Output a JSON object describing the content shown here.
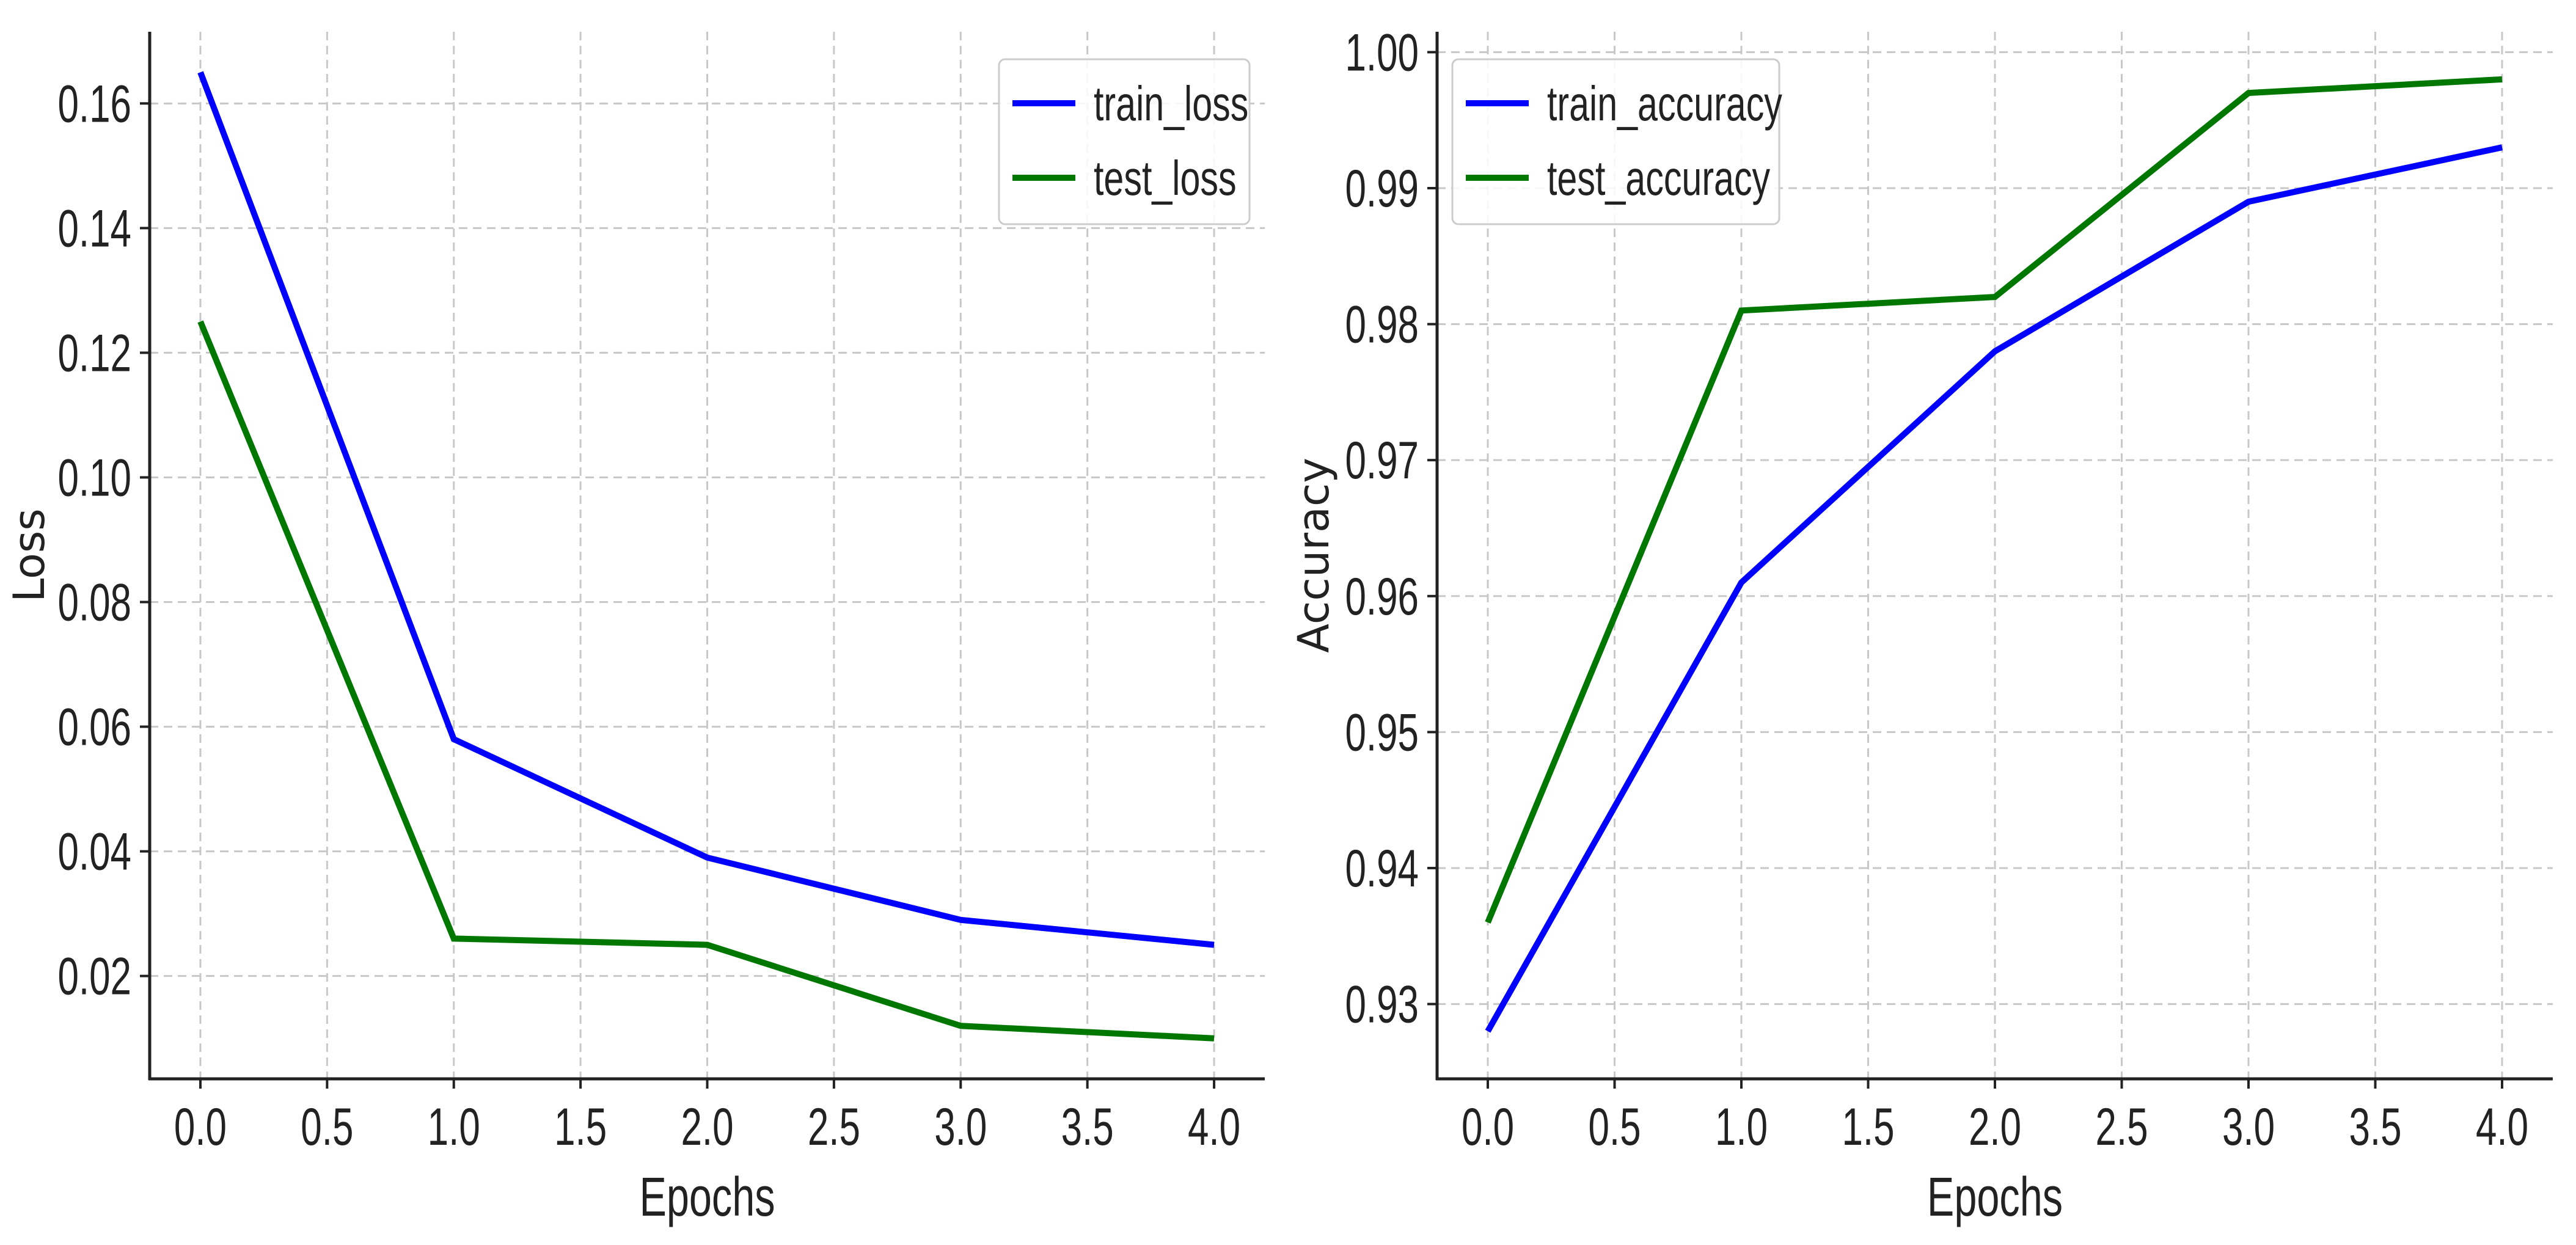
{
  "chart_data": [
    {
      "type": "line",
      "title": "",
      "xlabel": "Epochs",
      "ylabel": "Loss",
      "x": [
        0,
        1,
        2,
        3,
        4
      ],
      "xlim": [
        -0.2,
        4.2
      ],
      "ylim": [
        0.0035,
        0.1715
      ],
      "xticks": [
        0.0,
        0.5,
        1.0,
        1.5,
        2.0,
        2.5,
        3.0,
        3.5,
        4.0
      ],
      "xtick_labels": [
        "0.0",
        "0.5",
        "1.0",
        "1.5",
        "2.0",
        "2.5",
        "3.0",
        "3.5",
        "4.0"
      ],
      "yticks": [
        0.02,
        0.04,
        0.06,
        0.08,
        0.1,
        0.12,
        0.14,
        0.16
      ],
      "ytick_labels": [
        "0.02",
        "0.04",
        "0.06",
        "0.08",
        "0.10",
        "0.12",
        "0.14",
        "0.16"
      ],
      "grid": true,
      "legend_position": "top-right",
      "series": [
        {
          "name": "train_loss",
          "color": "#0000ff",
          "values": [
            0.165,
            0.058,
            0.039,
            0.029,
            0.025
          ]
        },
        {
          "name": "test_loss",
          "color": "#007700",
          "values": [
            0.125,
            0.026,
            0.025,
            0.012,
            0.01
          ]
        }
      ]
    },
    {
      "type": "line",
      "title": "",
      "xlabel": "Epochs",
      "ylabel": "Accuracy",
      "x": [
        0,
        1,
        2,
        3,
        4
      ],
      "xlim": [
        -0.2,
        4.2
      ],
      "ylim": [
        0.9245,
        1.0015
      ],
      "xticks": [
        0.0,
        0.5,
        1.0,
        1.5,
        2.0,
        2.5,
        3.0,
        3.5,
        4.0
      ],
      "xtick_labels": [
        "0.0",
        "0.5",
        "1.0",
        "1.5",
        "2.0",
        "2.5",
        "3.0",
        "3.5",
        "4.0"
      ],
      "yticks": [
        0.93,
        0.94,
        0.95,
        0.96,
        0.97,
        0.98,
        0.99,
        1.0
      ],
      "ytick_labels": [
        "0.93",
        "0.94",
        "0.95",
        "0.96",
        "0.97",
        "0.98",
        "0.99",
        "1.00"
      ],
      "grid": true,
      "legend_position": "top-left",
      "series": [
        {
          "name": "train_accuracy",
          "color": "#0000ff",
          "values": [
            0.928,
            0.961,
            0.978,
            0.989,
            0.993
          ]
        },
        {
          "name": "test_accuracy",
          "color": "#007700",
          "values": [
            0.936,
            0.981,
            0.982,
            0.997,
            0.998
          ]
        }
      ]
    }
  ]
}
